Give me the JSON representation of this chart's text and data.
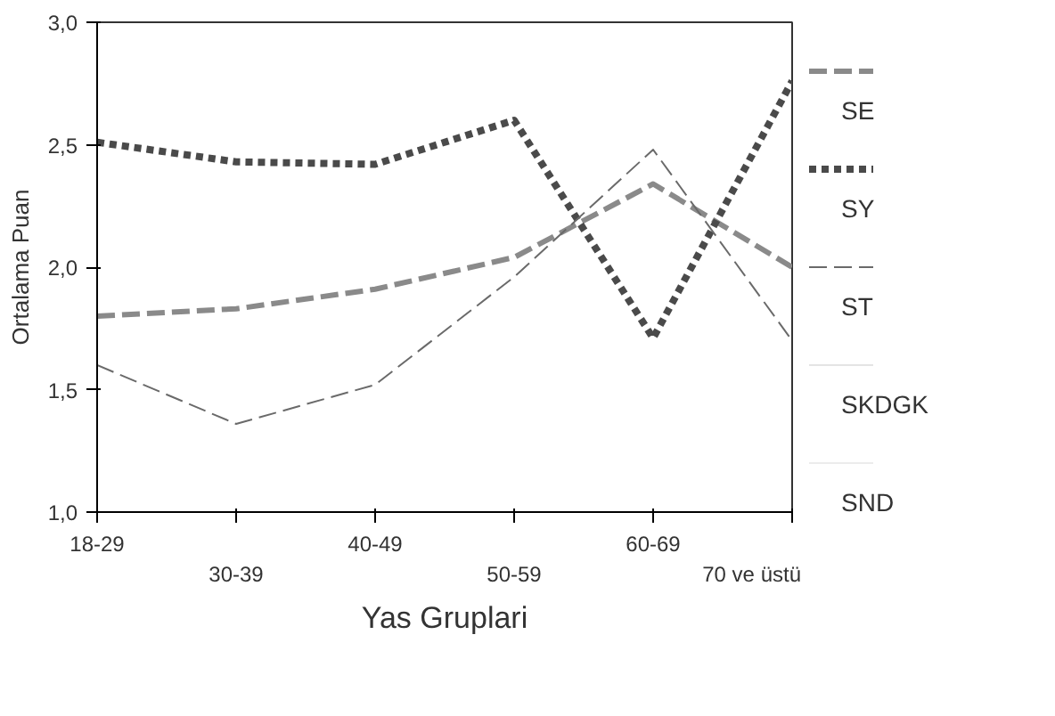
{
  "chart_data": {
    "type": "line",
    "xlabel": "Yas Gruplari",
    "ylabel": "Ortalama Puan",
    "categories": [
      "18-29",
      "30-39",
      "40-49",
      "50-59",
      "60-69",
      "70 ve üstü"
    ],
    "ylim": [
      1.0,
      3.0
    ],
    "yticks": [
      {
        "value": 1.0,
        "label": "1,0"
      },
      {
        "value": 1.5,
        "label": "1,5"
      },
      {
        "value": 2.0,
        "label": "2,0"
      },
      {
        "value": 2.5,
        "label": "2,5"
      },
      {
        "value": 3.0,
        "label": "3,0"
      }
    ],
    "grid": false,
    "legend": "right",
    "marker": "none",
    "series": [
      {
        "name": "SE",
        "color": "#8a8a8a",
        "line_style": "dashed",
        "values": [
          1.8,
          1.83,
          1.91,
          2.04,
          2.34,
          2.0
        ]
      },
      {
        "name": "SY",
        "color": "#4a4a4a",
        "line_style": "dotted",
        "values": [
          2.51,
          2.43,
          2.42,
          2.6,
          1.71,
          2.76
        ]
      },
      {
        "name": "ST",
        "color": "#6a6a6a",
        "line_style": "dashed",
        "values": [
          1.6,
          1.36,
          1.52,
          1.96,
          2.48,
          1.7
        ]
      },
      {
        "name": "SKDGK",
        "color": "#e4e4e4",
        "line_style": "solid",
        "values": [
          null,
          null,
          null,
          null,
          null,
          null
        ]
      },
      {
        "name": "SND",
        "color": "#ececec",
        "line_style": "solid",
        "values": [
          null,
          null,
          null,
          null,
          null,
          null
        ]
      }
    ]
  }
}
